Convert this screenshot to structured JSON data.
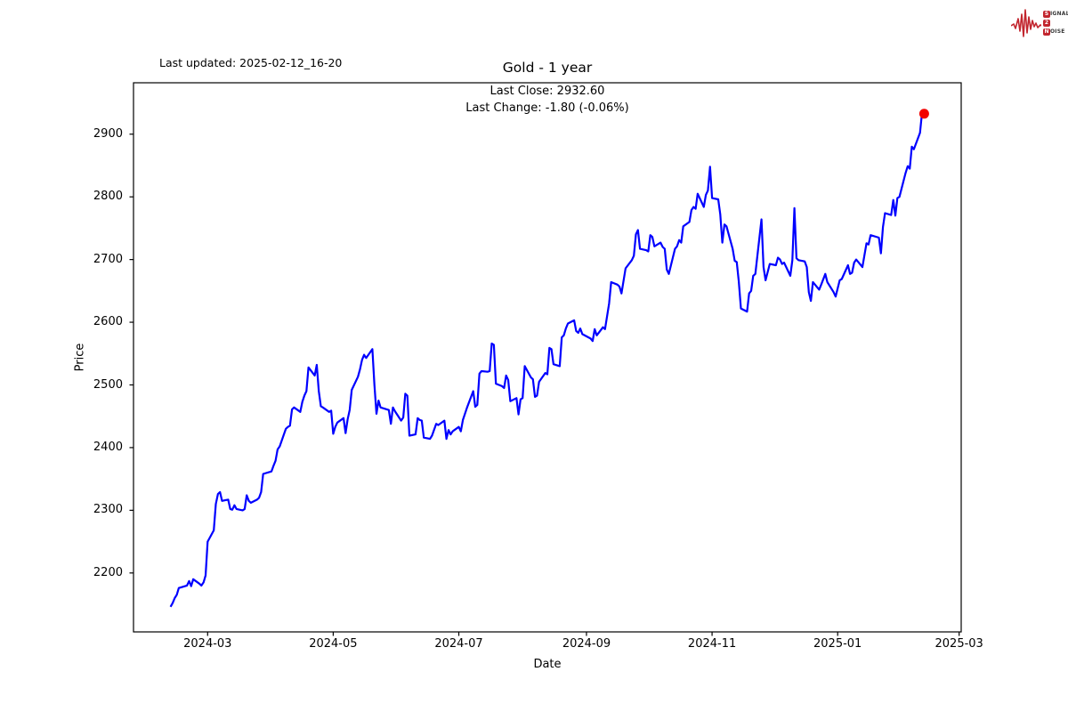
{
  "header": {
    "last_updated": "Last updated: 2025-02-12_16-20",
    "title": "Gold - 1 year",
    "subtitle_line1": "Last Close: 2932.60",
    "subtitle_line2": "Last Change: -1.80 (-0.06%)"
  },
  "logo": {
    "color": "#c2252e",
    "line1_badge": "S",
    "line1_rest": "IGNAL",
    "line2_badge": "2",
    "line2_rest": "",
    "line3_badge": "N",
    "line3_rest": "OISE"
  },
  "chart_data": {
    "type": "line",
    "title": "Gold - 1 year",
    "xlabel": "Date",
    "ylabel": "Price",
    "legend": "none",
    "grid": false,
    "line_color": "#0000ff",
    "marker_color": "#f20000",
    "last_close": 2932.6,
    "last_change": -1.8,
    "last_change_pct": -0.06,
    "xlim": [
      "2024-01-25",
      "2025-03-02"
    ],
    "ylim": [
      2106,
      2982
    ],
    "y_ticks": [
      2200,
      2300,
      2400,
      2500,
      2600,
      2700,
      2800,
      2900
    ],
    "x_tick_dates": [
      "2024-03-01",
      "2024-05-01",
      "2024-07-01",
      "2024-09-01",
      "2024-11-01",
      "2025-01-01",
      "2025-03-01"
    ],
    "x_tick_labels": [
      "2024-03",
      "2024-05",
      "2024-07",
      "2024-09",
      "2024-11",
      "2025-01",
      "2025-03"
    ],
    "series": [
      {
        "name": "Gold",
        "points": [
          [
            "2024-02-12",
            2146
          ],
          [
            "2024-02-13",
            2152
          ],
          [
            "2024-02-14",
            2160
          ],
          [
            "2024-02-15",
            2165
          ],
          [
            "2024-02-16",
            2176
          ],
          [
            "2024-02-20",
            2180
          ],
          [
            "2024-02-21",
            2187
          ],
          [
            "2024-02-22",
            2179
          ],
          [
            "2024-02-23",
            2190
          ],
          [
            "2024-02-26",
            2183
          ],
          [
            "2024-02-27",
            2180
          ],
          [
            "2024-02-28",
            2185
          ],
          [
            "2024-02-29",
            2196
          ],
          [
            "2024-03-01",
            2250
          ],
          [
            "2024-03-04",
            2268
          ],
          [
            "2024-03-05",
            2310
          ],
          [
            "2024-03-06",
            2326
          ],
          [
            "2024-03-07",
            2329
          ],
          [
            "2024-03-08",
            2315
          ],
          [
            "2024-03-11",
            2317
          ],
          [
            "2024-03-12",
            2302
          ],
          [
            "2024-03-13",
            2301
          ],
          [
            "2024-03-14",
            2308
          ],
          [
            "2024-03-15",
            2302
          ],
          [
            "2024-03-18",
            2300
          ],
          [
            "2024-03-19",
            2302
          ],
          [
            "2024-03-20",
            2324
          ],
          [
            "2024-03-21",
            2315
          ],
          [
            "2024-03-22",
            2312
          ],
          [
            "2024-03-25",
            2317
          ],
          [
            "2024-03-26",
            2320
          ],
          [
            "2024-03-27",
            2329
          ],
          [
            "2024-03-28",
            2358
          ],
          [
            "2024-04-01",
            2362
          ],
          [
            "2024-04-02",
            2371
          ],
          [
            "2024-04-03",
            2379
          ],
          [
            "2024-04-04",
            2397
          ],
          [
            "2024-04-05",
            2402
          ],
          [
            "2024-04-08",
            2430
          ],
          [
            "2024-04-09",
            2433
          ],
          [
            "2024-04-10",
            2435
          ],
          [
            "2024-04-11",
            2461
          ],
          [
            "2024-04-12",
            2464
          ],
          [
            "2024-04-15",
            2457
          ],
          [
            "2024-04-16",
            2473
          ],
          [
            "2024-04-17",
            2483
          ],
          [
            "2024-04-18",
            2490
          ],
          [
            "2024-04-19",
            2528
          ],
          [
            "2024-04-22",
            2515
          ],
          [
            "2024-04-23",
            2532
          ],
          [
            "2024-04-24",
            2490
          ],
          [
            "2024-04-25",
            2466
          ],
          [
            "2024-04-26",
            2464
          ],
          [
            "2024-04-29",
            2457
          ],
          [
            "2024-04-30",
            2459
          ],
          [
            "2024-05-01",
            2422
          ],
          [
            "2024-05-02",
            2433
          ],
          [
            "2024-05-03",
            2440
          ],
          [
            "2024-05-06",
            2447
          ],
          [
            "2024-05-07",
            2423
          ],
          [
            "2024-05-08",
            2445
          ],
          [
            "2024-05-09",
            2460
          ],
          [
            "2024-05-10",
            2492
          ],
          [
            "2024-05-13",
            2513
          ],
          [
            "2024-05-14",
            2525
          ],
          [
            "2024-05-15",
            2540
          ],
          [
            "2024-05-16",
            2548
          ],
          [
            "2024-05-17",
            2543
          ],
          [
            "2024-05-20",
            2557
          ],
          [
            "2024-05-21",
            2500
          ],
          [
            "2024-05-22",
            2454
          ],
          [
            "2024-05-23",
            2475
          ],
          [
            "2024-05-24",
            2464
          ],
          [
            "2024-05-28",
            2460
          ],
          [
            "2024-05-29",
            2438
          ],
          [
            "2024-05-30",
            2464
          ],
          [
            "2024-05-31",
            2458
          ],
          [
            "2024-06-03",
            2443
          ],
          [
            "2024-06-04",
            2448
          ],
          [
            "2024-06-05",
            2486
          ],
          [
            "2024-06-06",
            2483
          ],
          [
            "2024-06-07",
            2419
          ],
          [
            "2024-06-10",
            2421
          ],
          [
            "2024-06-11",
            2447
          ],
          [
            "2024-06-12",
            2444
          ],
          [
            "2024-06-13",
            2443
          ],
          [
            "2024-06-14",
            2416
          ],
          [
            "2024-06-17",
            2414
          ],
          [
            "2024-06-18",
            2419
          ],
          [
            "2024-06-20",
            2438
          ],
          [
            "2024-06-21",
            2436
          ],
          [
            "2024-06-24",
            2443
          ],
          [
            "2024-06-25",
            2414
          ],
          [
            "2024-06-26",
            2428
          ],
          [
            "2024-06-27",
            2421
          ],
          [
            "2024-06-28",
            2426
          ],
          [
            "2024-07-01",
            2433
          ],
          [
            "2024-07-02",
            2426
          ],
          [
            "2024-07-03",
            2444
          ],
          [
            "2024-07-05",
            2464
          ],
          [
            "2024-07-08",
            2490
          ],
          [
            "2024-07-09",
            2465
          ],
          [
            "2024-07-10",
            2468
          ],
          [
            "2024-07-11",
            2518
          ],
          [
            "2024-07-12",
            2522
          ],
          [
            "2024-07-15",
            2521
          ],
          [
            "2024-07-16",
            2522
          ],
          [
            "2024-07-17",
            2566
          ],
          [
            "2024-07-18",
            2564
          ],
          [
            "2024-07-19",
            2502
          ],
          [
            "2024-07-22",
            2498
          ],
          [
            "2024-07-23",
            2495
          ],
          [
            "2024-07-24",
            2515
          ],
          [
            "2024-07-25",
            2508
          ],
          [
            "2024-07-26",
            2474
          ],
          [
            "2024-07-29",
            2479
          ],
          [
            "2024-07-30",
            2453
          ],
          [
            "2024-07-31",
            2477
          ],
          [
            "2024-08-01",
            2479
          ],
          [
            "2024-08-02",
            2530
          ],
          [
            "2024-08-05",
            2512
          ],
          [
            "2024-08-06",
            2509
          ],
          [
            "2024-08-07",
            2481
          ],
          [
            "2024-08-08",
            2483
          ],
          [
            "2024-08-09",
            2505
          ],
          [
            "2024-08-12",
            2519
          ],
          [
            "2024-08-13",
            2517
          ],
          [
            "2024-08-14",
            2559
          ],
          [
            "2024-08-15",
            2557
          ],
          [
            "2024-08-16",
            2533
          ],
          [
            "2024-08-19",
            2530
          ],
          [
            "2024-08-20",
            2576
          ],
          [
            "2024-08-21",
            2579
          ],
          [
            "2024-08-22",
            2590
          ],
          [
            "2024-08-23",
            2598
          ],
          [
            "2024-08-26",
            2603
          ],
          [
            "2024-08-27",
            2586
          ],
          [
            "2024-08-28",
            2583
          ],
          [
            "2024-08-29",
            2590
          ],
          [
            "2024-08-30",
            2581
          ],
          [
            "2024-09-03",
            2574
          ],
          [
            "2024-09-04",
            2570
          ],
          [
            "2024-09-05",
            2589
          ],
          [
            "2024-09-06",
            2579
          ],
          [
            "2024-09-09",
            2592
          ],
          [
            "2024-09-10",
            2589
          ],
          [
            "2024-09-12",
            2630
          ],
          [
            "2024-09-13",
            2664
          ],
          [
            "2024-09-16",
            2660
          ],
          [
            "2024-09-17",
            2657
          ],
          [
            "2024-09-18",
            2646
          ],
          [
            "2024-09-20",
            2686
          ],
          [
            "2024-09-23",
            2699
          ],
          [
            "2024-09-24",
            2706
          ],
          [
            "2024-09-25",
            2740
          ],
          [
            "2024-09-26",
            2747
          ],
          [
            "2024-09-27",
            2717
          ],
          [
            "2024-09-30",
            2715
          ],
          [
            "2024-10-01",
            2713
          ],
          [
            "2024-10-02",
            2739
          ],
          [
            "2024-10-03",
            2736
          ],
          [
            "2024-10-04",
            2721
          ],
          [
            "2024-10-07",
            2727
          ],
          [
            "2024-10-08",
            2720
          ],
          [
            "2024-10-09",
            2717
          ],
          [
            "2024-10-10",
            2684
          ],
          [
            "2024-10-11",
            2677
          ],
          [
            "2024-10-14",
            2717
          ],
          [
            "2024-10-15",
            2721
          ],
          [
            "2024-10-16",
            2731
          ],
          [
            "2024-10-17",
            2727
          ],
          [
            "2024-10-18",
            2753
          ],
          [
            "2024-10-21",
            2760
          ],
          [
            "2024-10-22",
            2779
          ],
          [
            "2024-10-23",
            2784
          ],
          [
            "2024-10-24",
            2781
          ],
          [
            "2024-10-25",
            2805
          ],
          [
            "2024-10-28",
            2784
          ],
          [
            "2024-10-29",
            2803
          ],
          [
            "2024-10-30",
            2810
          ],
          [
            "2024-10-31",
            2848
          ],
          [
            "2024-11-01",
            2798
          ],
          [
            "2024-11-04",
            2796
          ],
          [
            "2024-11-05",
            2772
          ],
          [
            "2024-11-06",
            2727
          ],
          [
            "2024-11-07",
            2756
          ],
          [
            "2024-11-08",
            2753
          ],
          [
            "2024-11-11",
            2717
          ],
          [
            "2024-11-12",
            2698
          ],
          [
            "2024-11-13",
            2696
          ],
          [
            "2024-11-14",
            2665
          ],
          [
            "2024-11-15",
            2622
          ],
          [
            "2024-11-18",
            2617
          ],
          [
            "2024-11-19",
            2646
          ],
          [
            "2024-11-20",
            2650
          ],
          [
            "2024-11-21",
            2674
          ],
          [
            "2024-11-22",
            2677
          ],
          [
            "2024-11-25",
            2764
          ],
          [
            "2024-11-26",
            2688
          ],
          [
            "2024-11-27",
            2667
          ],
          [
            "2024-11-29",
            2693
          ],
          [
            "2024-12-02",
            2691
          ],
          [
            "2024-12-03",
            2703
          ],
          [
            "2024-12-04",
            2700
          ],
          [
            "2024-12-05",
            2693
          ],
          [
            "2024-12-06",
            2695
          ],
          [
            "2024-12-09",
            2674
          ],
          [
            "2024-12-10",
            2699
          ],
          [
            "2024-12-11",
            2782
          ],
          [
            "2024-12-12",
            2702
          ],
          [
            "2024-12-13",
            2699
          ],
          [
            "2024-12-16",
            2697
          ],
          [
            "2024-12-17",
            2688
          ],
          [
            "2024-12-18",
            2648
          ],
          [
            "2024-12-19",
            2634
          ],
          [
            "2024-12-20",
            2664
          ],
          [
            "2024-12-23",
            2652
          ],
          [
            "2024-12-24",
            2660
          ],
          [
            "2024-12-26",
            2677
          ],
          [
            "2024-12-27",
            2664
          ],
          [
            "2024-12-30",
            2648
          ],
          [
            "2024-12-31",
            2641
          ],
          [
            "2025-01-02",
            2667
          ],
          [
            "2025-01-03",
            2669
          ],
          [
            "2025-01-06",
            2691
          ],
          [
            "2025-01-07",
            2677
          ],
          [
            "2025-01-08",
            2679
          ],
          [
            "2025-01-09",
            2695
          ],
          [
            "2025-01-10",
            2700
          ],
          [
            "2025-01-13",
            2688
          ],
          [
            "2025-01-14",
            2707
          ],
          [
            "2025-01-15",
            2726
          ],
          [
            "2025-01-16",
            2724
          ],
          [
            "2025-01-17",
            2739
          ],
          [
            "2025-01-21",
            2735
          ],
          [
            "2025-01-22",
            2710
          ],
          [
            "2025-01-23",
            2752
          ],
          [
            "2025-01-24",
            2774
          ],
          [
            "2025-01-27",
            2771
          ],
          [
            "2025-01-28",
            2795
          ],
          [
            "2025-01-29",
            2770
          ],
          [
            "2025-01-30",
            2798
          ],
          [
            "2025-01-31",
            2800
          ],
          [
            "2025-02-03",
            2838
          ],
          [
            "2025-02-04",
            2849
          ],
          [
            "2025-02-05",
            2845
          ],
          [
            "2025-02-06",
            2880
          ],
          [
            "2025-02-07",
            2876
          ],
          [
            "2025-02-10",
            2902
          ],
          [
            "2025-02-11",
            2934.4
          ],
          [
            "2025-02-12",
            2932.6
          ]
        ]
      }
    ]
  }
}
